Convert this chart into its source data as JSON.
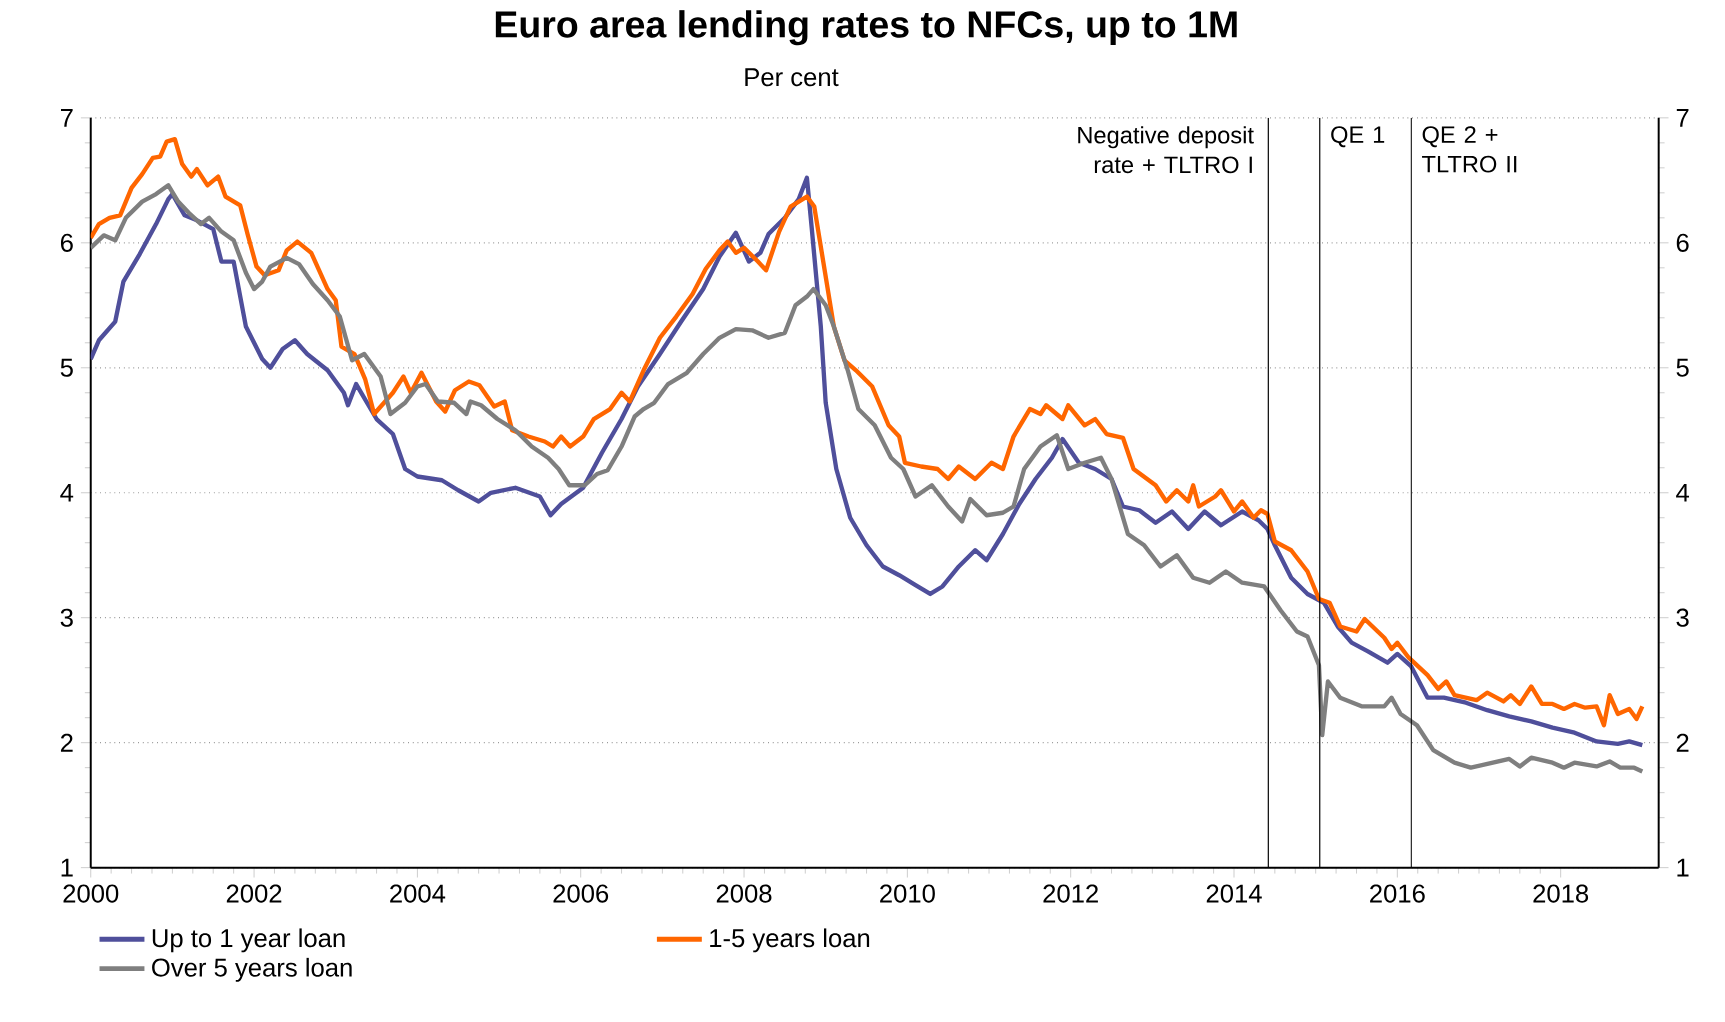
{
  "chart_data": {
    "type": "line",
    "title": "Euro area lending rates to NFCs, up to 1M",
    "subtitle": "Per cent",
    "xlim": [
      2000,
      2019.2
    ],
    "xticks": [
      2000,
      2002,
      2004,
      2006,
      2008,
      2010,
      2012,
      2014,
      2016,
      2018
    ],
    "ylim": [
      1,
      7
    ],
    "yticks": [
      1,
      2,
      3,
      4,
      5,
      6,
      7
    ],
    "y2lim": [
      1,
      7
    ],
    "y2ticks": [
      1,
      2,
      3,
      4,
      5,
      6,
      7
    ],
    "grid": "y",
    "legend": "bottom",
    "marker": "none",
    "line_style": "solid",
    "ref_lines": [
      {
        "axis": "x",
        "value": 2014.42,
        "label": "Negative deposit rate + TLTRO I"
      },
      {
        "axis": "x",
        "value": 2015.05,
        "label": "QE 1"
      },
      {
        "axis": "x",
        "value": 2016.17,
        "label": "QE 2 + TLTRO II"
      }
    ],
    "series": [
      {
        "name": "Up to 1 year loan",
        "color": "#4f4f9b",
        "x": [
          2000.0,
          2000.1,
          2000.3,
          2000.4,
          2000.6,
          2000.8,
          2000.95,
          2001.0,
          2001.15,
          2001.3,
          2001.5,
          2001.6,
          2001.75,
          2001.9,
          2002.1,
          2002.2,
          2002.35,
          2002.5,
          2002.65,
          2002.9,
          2003.1,
          2003.15,
          2003.25,
          2003.5,
          2003.7,
          2003.85,
          2004.0,
          2004.3,
          2004.5,
          2004.75,
          2004.9,
          2005.2,
          2005.5,
          2005.63,
          2005.76,
          2006.03,
          2006.26,
          2006.5,
          2006.7,
          2006.97,
          2007.23,
          2007.5,
          2007.7,
          2007.9,
          2008.06,
          2008.2,
          2008.3,
          2008.5,
          2008.67,
          2008.77,
          2008.83,
          2008.94,
          2009.0,
          2009.13,
          2009.3,
          2009.5,
          2009.7,
          2009.9,
          2010.1,
          2010.28,
          2010.43,
          2010.63,
          2010.83,
          2010.97,
          2011.17,
          2011.37,
          2011.57,
          2011.77,
          2011.9,
          2012.1,
          2012.3,
          2012.5,
          2012.64,
          2012.84,
          2013.04,
          2013.24,
          2013.44,
          2013.64,
          2013.84,
          2014.1,
          2014.3,
          2014.41,
          2014.5,
          2014.7,
          2014.9,
          2015.1,
          2015.27,
          2015.44,
          2015.64,
          2015.88,
          2016.0,
          2016.17,
          2016.37,
          2016.57,
          2016.84,
          2017.1,
          2017.37,
          2017.64,
          2017.9,
          2018.17,
          2018.44,
          2018.7,
          2018.84,
          2019.0
        ],
        "values": [
          5.07,
          5.22,
          5.37,
          5.69,
          5.91,
          6.15,
          6.35,
          6.39,
          6.22,
          6.18,
          6.11,
          5.85,
          5.85,
          5.33,
          5.07,
          5.0,
          5.15,
          5.22,
          5.11,
          4.98,
          4.8,
          4.7,
          4.87,
          4.59,
          4.47,
          4.19,
          4.13,
          4.1,
          4.02,
          3.93,
          4.0,
          4.04,
          3.97,
          3.82,
          3.91,
          4.04,
          4.32,
          4.59,
          4.85,
          5.11,
          5.37,
          5.63,
          5.89,
          6.08,
          5.85,
          5.92,
          6.07,
          6.2,
          6.35,
          6.52,
          6.11,
          5.33,
          4.72,
          4.19,
          3.8,
          3.58,
          3.41,
          3.34,
          3.26,
          3.19,
          3.25,
          3.41,
          3.54,
          3.46,
          3.67,
          3.91,
          4.11,
          4.28,
          4.43,
          4.24,
          4.19,
          4.11,
          3.89,
          3.86,
          3.76,
          3.85,
          3.71,
          3.85,
          3.74,
          3.85,
          3.78,
          3.71,
          3.58,
          3.32,
          3.19,
          3.12,
          2.93,
          2.8,
          2.73,
          2.64,
          2.71,
          2.61,
          2.36,
          2.36,
          2.32,
          2.26,
          2.21,
          2.17,
          2.12,
          2.08,
          2.01,
          1.99,
          2.01,
          1.98
        ]
      },
      {
        "name": "1-5 years loan",
        "color": "#ff6600",
        "x": [
          2000.0,
          2000.1,
          2000.23,
          2000.36,
          2000.5,
          2000.63,
          2000.76,
          2000.85,
          2000.93,
          2001.03,
          2001.12,
          2001.23,
          2001.3,
          2001.43,
          2001.56,
          2001.65,
          2001.83,
          2001.92,
          2002.03,
          2002.13,
          2002.3,
          2002.4,
          2002.53,
          2002.7,
          2002.9,
          2003.0,
          2003.07,
          2003.23,
          2003.36,
          2003.47,
          2003.7,
          2003.83,
          2003.92,
          2004.05,
          2004.23,
          2004.34,
          2004.46,
          2004.63,
          2004.76,
          2004.94,
          2005.07,
          2005.16,
          2005.36,
          2005.56,
          2005.66,
          2005.76,
          2005.87,
          2006.03,
          2006.16,
          2006.36,
          2006.5,
          2006.6,
          2006.77,
          2006.97,
          2007.17,
          2007.37,
          2007.53,
          2007.7,
          2007.8,
          2007.9,
          2008.0,
          2008.17,
          2008.27,
          2008.43,
          2008.57,
          2008.77,
          2008.86,
          2008.97,
          2009.1,
          2009.23,
          2009.37,
          2009.57,
          2009.77,
          2009.9,
          2009.97,
          2010.17,
          2010.37,
          2010.5,
          2010.63,
          2010.83,
          2011.03,
          2011.17,
          2011.3,
          2011.5,
          2011.63,
          2011.7,
          2011.9,
          2011.97,
          2012.17,
          2012.3,
          2012.44,
          2012.64,
          2012.77,
          2013.04,
          2013.17,
          2013.3,
          2013.44,
          2013.5,
          2013.57,
          2013.77,
          2013.84,
          2014.0,
          2014.1,
          2014.24,
          2014.33,
          2014.41,
          2014.5,
          2014.7,
          2014.9,
          2015.04,
          2015.17,
          2015.3,
          2015.5,
          2015.6,
          2015.84,
          2015.93,
          2016.0,
          2016.14,
          2016.37,
          2016.5,
          2016.6,
          2016.7,
          2016.97,
          2017.1,
          2017.3,
          2017.39,
          2017.5,
          2017.64,
          2017.77,
          2017.9,
          2018.04,
          2018.17,
          2018.3,
          2018.44,
          2018.53,
          2018.6,
          2018.7,
          2018.84,
          2018.93,
          2019.0
        ],
        "values": [
          6.04,
          6.15,
          6.2,
          6.22,
          6.44,
          6.55,
          6.68,
          6.69,
          6.81,
          6.83,
          6.63,
          6.53,
          6.59,
          6.46,
          6.53,
          6.37,
          6.3,
          6.07,
          5.81,
          5.74,
          5.78,
          5.94,
          6.01,
          5.92,
          5.63,
          5.54,
          5.17,
          5.11,
          4.91,
          4.63,
          4.8,
          4.93,
          4.8,
          4.96,
          4.73,
          4.65,
          4.82,
          4.89,
          4.86,
          4.69,
          4.73,
          4.5,
          4.45,
          4.41,
          4.37,
          4.45,
          4.37,
          4.45,
          4.59,
          4.67,
          4.8,
          4.73,
          4.98,
          5.24,
          5.41,
          5.59,
          5.79,
          5.94,
          6.01,
          5.92,
          5.96,
          5.85,
          5.78,
          6.09,
          6.29,
          6.37,
          6.29,
          5.85,
          5.33,
          5.06,
          4.98,
          4.85,
          4.54,
          4.45,
          4.24,
          4.21,
          4.19,
          4.11,
          4.21,
          4.11,
          4.24,
          4.19,
          4.45,
          4.67,
          4.63,
          4.7,
          4.59,
          4.7,
          4.54,
          4.59,
          4.47,
          4.44,
          4.19,
          4.06,
          3.93,
          4.02,
          3.93,
          4.06,
          3.89,
          3.97,
          4.02,
          3.85,
          3.93,
          3.8,
          3.86,
          3.83,
          3.61,
          3.54,
          3.37,
          3.15,
          3.12,
          2.93,
          2.89,
          2.99,
          2.84,
          2.75,
          2.8,
          2.68,
          2.54,
          2.43,
          2.49,
          2.38,
          2.34,
          2.4,
          2.33,
          2.38,
          2.31,
          2.45,
          2.31,
          2.31,
          2.27,
          2.31,
          2.28,
          2.29,
          2.14,
          2.38,
          2.23,
          2.27,
          2.19,
          2.29
        ]
      },
      {
        "name": "Over 5 years loan",
        "color": "#7f7f7f",
        "x": [
          2000.0,
          2000.16,
          2000.3,
          2000.43,
          2000.63,
          2000.8,
          2000.95,
          2001.07,
          2001.2,
          2001.35,
          2001.45,
          2001.6,
          2001.75,
          2001.9,
          2002.0,
          2002.1,
          2002.2,
          2002.4,
          2002.55,
          2002.72,
          2002.9,
          2003.05,
          2003.2,
          2003.35,
          2003.55,
          2003.67,
          2003.85,
          2004.0,
          2004.1,
          2004.25,
          2004.45,
          2004.6,
          2004.65,
          2004.78,
          2004.98,
          2005.2,
          2005.4,
          2005.6,
          2005.73,
          2005.86,
          2006.05,
          2006.2,
          2006.33,
          2006.5,
          2006.66,
          2006.77,
          2006.9,
          2007.07,
          2007.3,
          2007.5,
          2007.7,
          2007.9,
          2008.1,
          2008.3,
          2008.5,
          2008.63,
          2008.77,
          2008.85,
          2009.0,
          2009.1,
          2009.27,
          2009.4,
          2009.6,
          2009.8,
          2009.95,
          2010.1,
          2010.3,
          2010.5,
          2010.67,
          2010.77,
          2010.97,
          2011.17,
          2011.3,
          2011.43,
          2011.63,
          2011.83,
          2011.97,
          2012.17,
          2012.37,
          2012.5,
          2012.7,
          2012.9,
          2013.1,
          2013.3,
          2013.5,
          2013.7,
          2013.9,
          2014.1,
          2014.37,
          2014.57,
          2014.77,
          2014.9,
          2015.04,
          2015.08,
          2015.15,
          2015.3,
          2015.57,
          2015.84,
          2015.93,
          2016.04,
          2016.24,
          2016.44,
          2016.7,
          2016.9,
          2017.17,
          2017.37,
          2017.5,
          2017.64,
          2017.9,
          2018.04,
          2018.17,
          2018.44,
          2018.6,
          2018.73,
          2018.9,
          2019.0
        ],
        "values": [
          5.96,
          6.06,
          6.02,
          6.2,
          6.33,
          6.39,
          6.46,
          6.33,
          6.24,
          6.15,
          6.2,
          6.09,
          6.02,
          5.76,
          5.63,
          5.69,
          5.81,
          5.88,
          5.83,
          5.67,
          5.54,
          5.41,
          5.06,
          5.11,
          4.93,
          4.63,
          4.72,
          4.85,
          4.87,
          4.73,
          4.72,
          4.63,
          4.73,
          4.7,
          4.59,
          4.5,
          4.37,
          4.28,
          4.19,
          4.06,
          4.06,
          4.15,
          4.18,
          4.37,
          4.61,
          4.67,
          4.72,
          4.87,
          4.96,
          5.11,
          5.24,
          5.31,
          5.3,
          5.24,
          5.28,
          5.5,
          5.57,
          5.63,
          5.5,
          5.33,
          4.98,
          4.67,
          4.54,
          4.28,
          4.19,
          3.97,
          4.06,
          3.89,
          3.77,
          3.95,
          3.82,
          3.84,
          3.89,
          4.19,
          4.37,
          4.46,
          4.19,
          4.24,
          4.28,
          4.11,
          3.67,
          3.58,
          3.41,
          3.5,
          3.32,
          3.28,
          3.37,
          3.28,
          3.25,
          3.06,
          2.89,
          2.85,
          2.62,
          2.06,
          2.49,
          2.36,
          2.29,
          2.29,
          2.36,
          2.23,
          2.14,
          1.94,
          1.84,
          1.8,
          1.84,
          1.87,
          1.81,
          1.88,
          1.84,
          1.8,
          1.84,
          1.81,
          1.85,
          1.8,
          1.8,
          1.77
        ]
      }
    ]
  }
}
